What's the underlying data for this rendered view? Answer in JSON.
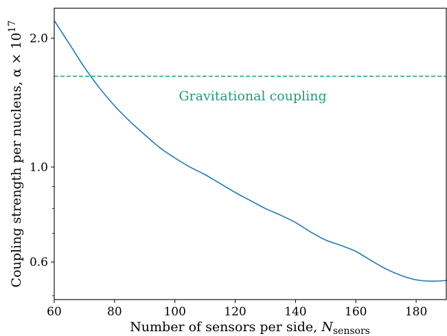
{
  "chart_data": {
    "type": "line",
    "xlabel": "Number of sensors per side, ",
    "xlabel_symbol": "N",
    "xlabel_subscript": "sensors",
    "ylabel": "Coupling strength per nucleus, ",
    "ylabel_symbol": "α × 10",
    "ylabel_superscript": "17",
    "xlim": [
      60,
      190
    ],
    "ylim": [
      0.49,
      2.35
    ],
    "yscale": "log",
    "grid": false,
    "x_ticks": [
      60,
      80,
      100,
      120,
      140,
      160,
      180
    ],
    "x_tick_labels": [
      "60",
      "80",
      "100",
      "120",
      "140",
      "160",
      "180"
    ],
    "y_ticks": [
      0.6,
      1.0,
      2.0
    ],
    "y_tick_labels": [
      "0.6",
      "1.0",
      "2.0"
    ],
    "y_minor_ticks": [
      0.5,
      0.7,
      0.8,
      0.9
    ],
    "series": [
      {
        "color": "#1f77b4",
        "x": [
          60,
          65,
          70,
          75,
          80,
          85,
          90,
          95,
          100,
          105,
          110,
          115,
          120,
          125,
          130,
          135,
          140,
          145,
          150,
          155,
          160,
          165,
          170,
          175,
          180,
          185,
          190
        ],
        "y": [
          2.2,
          1.94,
          1.71,
          1.53,
          1.39,
          1.28,
          1.19,
          1.11,
          1.05,
          1.0,
          0.96,
          0.915,
          0.872,
          0.835,
          0.8,
          0.772,
          0.742,
          0.705,
          0.675,
          0.656,
          0.635,
          0.605,
          0.578,
          0.558,
          0.545,
          0.541,
          0.543
        ]
      }
    ],
    "reference_line": {
      "y": 1.63,
      "color": "#1a9c7b",
      "style": "dashed",
      "label": "Gravitational coupling"
    }
  }
}
